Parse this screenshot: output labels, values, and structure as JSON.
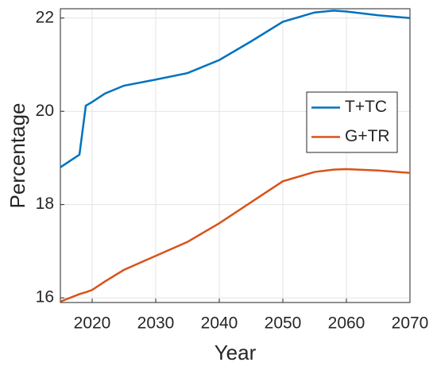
{
  "chart_data": {
    "type": "line",
    "x_label": "Year",
    "y_label": "Percentage",
    "x": [
      2015,
      2018,
      2019,
      2020,
      2022,
      2025,
      2030,
      2035,
      2040,
      2045,
      2050,
      2055,
      2058,
      2060,
      2065,
      2070
    ],
    "series": [
      {
        "name": "T+TC",
        "color": "#0072BD",
        "values": [
          18.8,
          19.07,
          20.12,
          20.2,
          20.38,
          20.55,
          20.68,
          20.82,
          21.1,
          21.5,
          21.92,
          22.12,
          22.16,
          22.14,
          22.06,
          22.0
        ]
      },
      {
        "name": "G+TR",
        "color": "#D95319",
        "values": [
          15.92,
          16.08,
          16.12,
          16.17,
          16.35,
          16.6,
          16.9,
          17.2,
          17.6,
          18.05,
          18.5,
          18.7,
          18.75,
          18.76,
          18.73,
          18.68
        ]
      }
    ],
    "xlim": [
      2015,
      2070
    ],
    "xticks": [
      2020,
      2030,
      2040,
      2050,
      2060,
      2070
    ],
    "ylim": [
      15.9,
      22.2
    ],
    "yticks": [
      16,
      18,
      20,
      22
    ],
    "grid": true,
    "legend": "east"
  }
}
